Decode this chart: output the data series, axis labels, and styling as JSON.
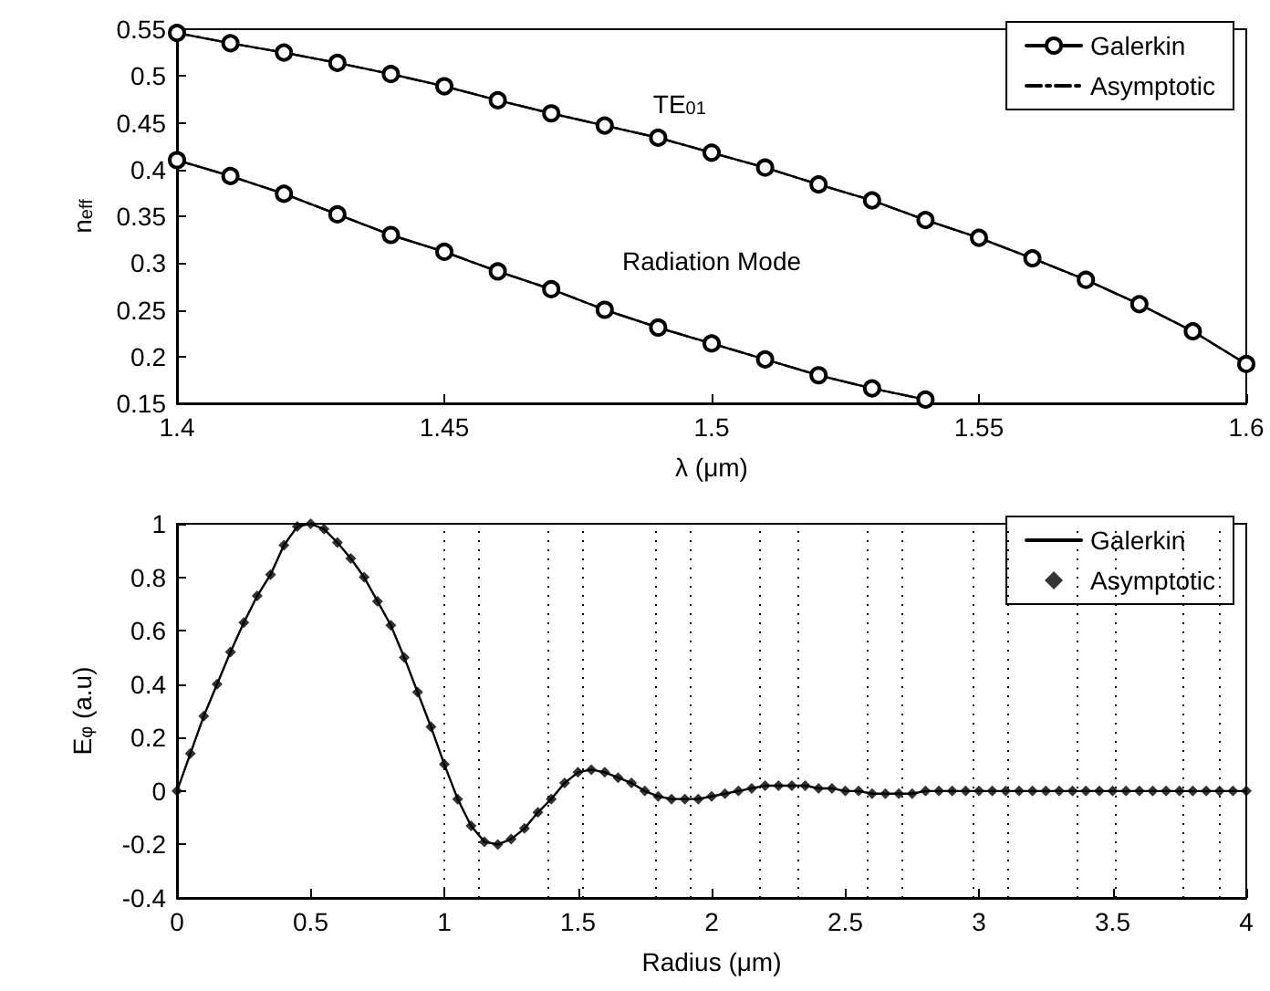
{
  "chart_data": [
    {
      "type": "line",
      "xlabel": "λ (μm)",
      "ylabel": "n$_{eff}$",
      "x": [
        1.4,
        1.41,
        1.42,
        1.43,
        1.44,
        1.45,
        1.46,
        1.47,
        1.48,
        1.49,
        1.5,
        1.51,
        1.52,
        1.53,
        1.54,
        1.55,
        1.56,
        1.57,
        1.58,
        1.59,
        1.6
      ],
      "series": [
        {
          "name": "Galerkin",
          "color": "#000000",
          "line_style": "solid",
          "marker": "circle",
          "values": [
            0.546,
            0.535,
            0.525,
            0.514,
            0.502,
            0.489,
            0.474,
            0.46,
            0.447,
            0.434,
            0.418,
            0.402,
            0.384,
            0.367,
            0.346,
            0.327,
            0.305,
            0.282,
            0.256,
            0.227,
            0.192
          ]
        },
        {
          "name": "Asymptotic",
          "color": "#000000",
          "line_style": "dashed",
          "marker": "none",
          "values": [
            0.546,
            0.535,
            0.525,
            0.514,
            0.502,
            0.489,
            0.474,
            0.46,
            0.447,
            0.434,
            0.418,
            0.402,
            0.384,
            0.367,
            0.346,
            0.327,
            0.305,
            0.282,
            0.256,
            0.227,
            0.192
          ]
        },
        {
          "color": "#000000",
          "line_style": "solid",
          "marker": "circle",
          "values": [
            0.41,
            0.393,
            0.374,
            0.352,
            0.33,
            0.312,
            0.291,
            0.272,
            0.25,
            0.231,
            0.214,
            0.197,
            0.18,
            0.166,
            0.154,
            null,
            null,
            null,
            null,
            null,
            null
          ]
        },
        {
          "color": "#000000",
          "line_style": "dashed",
          "marker": "none",
          "values": [
            0.41,
            0.393,
            0.374,
            0.352,
            0.33,
            0.312,
            0.291,
            0.272,
            0.25,
            0.231,
            0.214,
            0.197,
            0.18,
            0.166,
            0.154,
            null,
            null,
            null,
            null,
            null,
            null
          ]
        }
      ],
      "xlim": [
        1.4,
        1.6
      ],
      "xticks": [
        1.4,
        1.45,
        1.5,
        1.55,
        1.6
      ],
      "ylim": [
        0.15,
        0.55
      ],
      "yticks": [
        0.15,
        0.2,
        0.25,
        0.3,
        0.35,
        0.4,
        0.45,
        0.5,
        0.55
      ],
      "legend": "top right",
      "annotations": [
        "TE$_{01}$",
        "Radiation Mode"
      ]
    },
    {
      "type": "line",
      "xlabel": "Radius (μm)",
      "ylabel": "E$_{φ}$ (a.u)",
      "x": [
        0,
        0.05,
        0.1,
        0.15,
        0.2,
        0.25,
        0.3,
        0.35,
        0.4,
        0.45,
        0.5,
        0.55,
        0.6,
        0.65,
        0.7,
        0.75,
        0.8,
        0.85,
        0.9,
        0.95,
        1,
        1.05,
        1.1,
        1.15,
        1.2,
        1.25,
        1.3,
        1.35,
        1.4,
        1.45,
        1.5,
        1.55,
        1.6,
        1.65,
        1.7,
        1.75,
        1.8,
        1.85,
        1.9,
        1.95,
        2,
        2.05,
        2.1,
        2.15,
        2.2,
        2.25,
        2.3,
        2.35,
        2.4,
        2.45,
        2.5,
        2.55,
        2.6,
        2.65,
        2.7,
        2.75,
        2.8,
        2.85,
        2.9,
        2.95,
        3,
        3.05,
        3.1,
        3.15,
        3.2,
        3.25,
        3.3,
        3.35,
        3.4,
        3.45,
        3.5,
        3.55,
        3.6,
        3.65,
        3.7,
        3.75,
        3.8,
        3.85,
        3.9,
        3.95,
        4
      ],
      "series": [
        {
          "name": "Galerkin",
          "color": "#000000",
          "line_style": "solid",
          "marker": "none",
          "values": [
            0,
            0.14,
            0.28,
            0.4,
            0.52,
            0.63,
            0.73,
            0.81,
            0.92,
            0.99,
            1,
            0.98,
            0.93,
            0.87,
            0.8,
            0.71,
            0.62,
            0.5,
            0.37,
            0.24,
            0.1,
            -0.03,
            -0.13,
            -0.19,
            -0.2,
            -0.18,
            -0.14,
            -0.08,
            -0.03,
            0.03,
            0.07,
            0.08,
            0.07,
            0.05,
            0.03,
            0,
            -0.02,
            -0.03,
            -0.03,
            -0.03,
            -0.02,
            -0.01,
            0,
            0.01,
            0.02,
            0.02,
            0.02,
            0.02,
            0.01,
            0.01,
            0,
            0,
            -0.01,
            -0.01,
            -0.01,
            -0.01,
            0,
            0,
            0,
            0,
            0,
            0,
            0,
            0,
            0,
            0,
            0,
            0,
            0,
            0,
            0,
            0,
            0,
            0,
            0,
            0,
            0,
            0,
            0,
            0,
            0
          ]
        },
        {
          "name": "Asymptotic",
          "color": "#000000",
          "type": "scatter",
          "marker": "diamond",
          "values": [
            0,
            0.14,
            0.28,
            0.4,
            0.52,
            0.63,
            0.73,
            0.81,
            0.92,
            0.99,
            1,
            0.98,
            0.93,
            0.87,
            0.8,
            0.71,
            0.62,
            0.5,
            0.37,
            0.24,
            0.1,
            -0.03,
            -0.13,
            -0.19,
            -0.2,
            -0.18,
            -0.14,
            -0.08,
            -0.03,
            0.03,
            0.07,
            0.08,
            0.07,
            0.05,
            0.03,
            0,
            -0.02,
            -0.03,
            -0.03,
            -0.03,
            -0.02,
            -0.01,
            0,
            0.01,
            0.02,
            0.02,
            0.02,
            0.02,
            0.01,
            0.01,
            0,
            0,
            -0.01,
            -0.01,
            -0.01,
            -0.01,
            0,
            0,
            0,
            0,
            0,
            0,
            0,
            0,
            0,
            0,
            0,
            0,
            0,
            0,
            0,
            0,
            0,
            0,
            0,
            0,
            0,
            0,
            0,
            0,
            0
          ]
        }
      ],
      "xlim": [
        0,
        4
      ],
      "xticks": [
        0,
        0.5,
        1,
        1.5,
        2,
        2.5,
        3,
        3.5,
        4
      ],
      "ylim": [
        -0.4,
        1
      ],
      "yticks": [
        -0.4,
        -0.2,
        0,
        0.2,
        0.4,
        0.6,
        0.8,
        1
      ],
      "legend": "top right",
      "ref_lines": [
        {
          "axis": "x",
          "value": 1.0,
          "line_style": "dotted"
        },
        {
          "axis": "x",
          "value": 1.13,
          "line_style": "dotted"
        },
        {
          "axis": "x",
          "value": 1.39,
          "line_style": "dotted"
        },
        {
          "axis": "x",
          "value": 1.52,
          "line_style": "dotted"
        },
        {
          "axis": "x",
          "value": 1.79,
          "line_style": "dotted"
        },
        {
          "axis": "x",
          "value": 1.92,
          "line_style": "dotted"
        },
        {
          "axis": "x",
          "value": 2.18,
          "line_style": "dotted"
        },
        {
          "axis": "x",
          "value": 2.32,
          "line_style": "dotted"
        },
        {
          "axis": "x",
          "value": 2.58,
          "line_style": "dotted"
        },
        {
          "axis": "x",
          "value": 2.71,
          "line_style": "dotted"
        },
        {
          "axis": "x",
          "value": 2.98,
          "line_style": "dotted"
        },
        {
          "axis": "x",
          "value": 3.11,
          "line_style": "dotted"
        },
        {
          "axis": "x",
          "value": 3.37,
          "line_style": "dotted"
        },
        {
          "axis": "x",
          "value": 3.51,
          "line_style": "dotted"
        },
        {
          "axis": "x",
          "value": 3.76,
          "line_style": "dotted"
        },
        {
          "axis": "x",
          "value": 3.9,
          "line_style": "dotted"
        }
      ]
    }
  ]
}
